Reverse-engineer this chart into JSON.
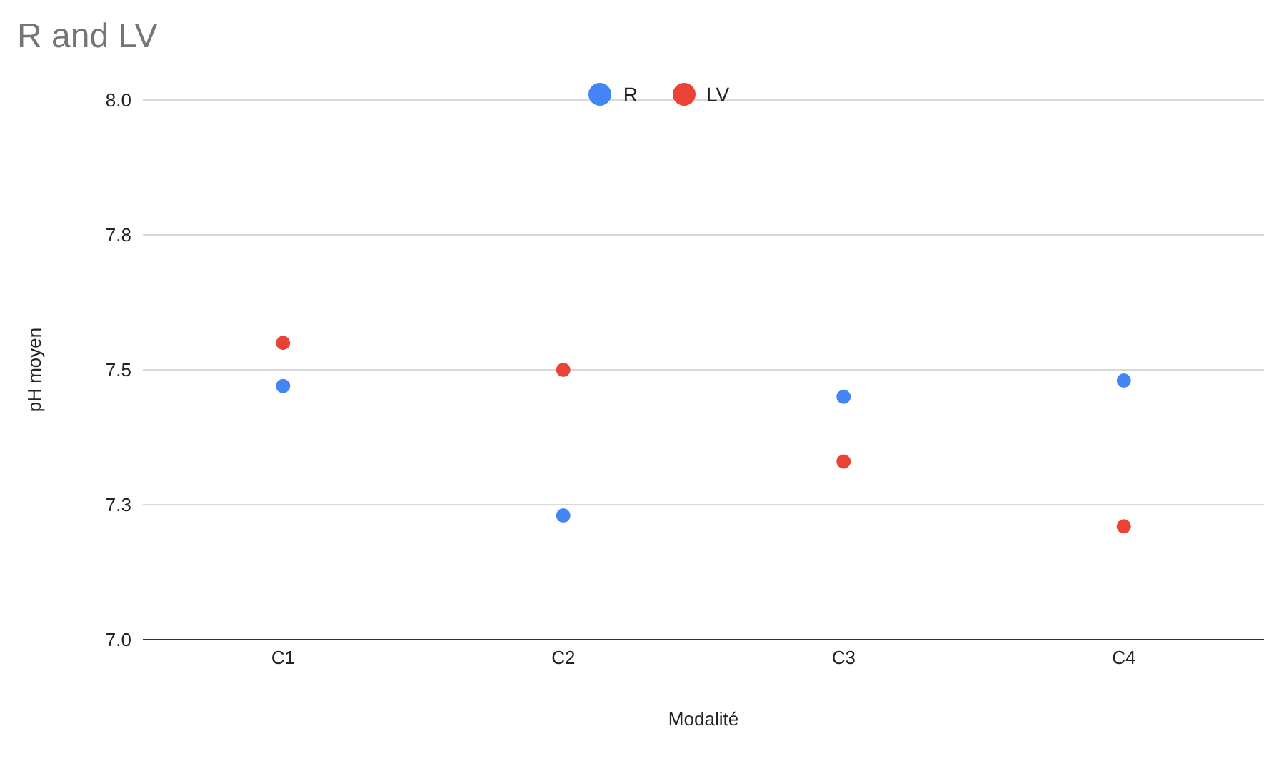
{
  "chart_data": {
    "type": "scatter",
    "title": "R and LV",
    "xlabel": "Modalité",
    "ylabel": "pH moyen",
    "categories": [
      "C1",
      "C2",
      "C3",
      "C4"
    ],
    "series": [
      {
        "name": "R",
        "color": "#4285f4",
        "values": [
          7.47,
          7.23,
          7.45,
          7.48
        ]
      },
      {
        "name": "LV",
        "color": "#ea4335",
        "values": [
          7.55,
          7.5,
          7.33,
          7.21
        ]
      }
    ],
    "ylim": [
      7.0,
      8.0
    ],
    "yticks": [
      {
        "value": 7.0,
        "label": "7.0"
      },
      {
        "value": 7.25,
        "label": "7.3"
      },
      7.5,
      {
        "value": 7.75,
        "label": "7.8"
      },
      {
        "value": 8.0,
        "label": "8.0"
      }
    ],
    "grid": "y",
    "legend": "top",
    "marker": "circle"
  }
}
